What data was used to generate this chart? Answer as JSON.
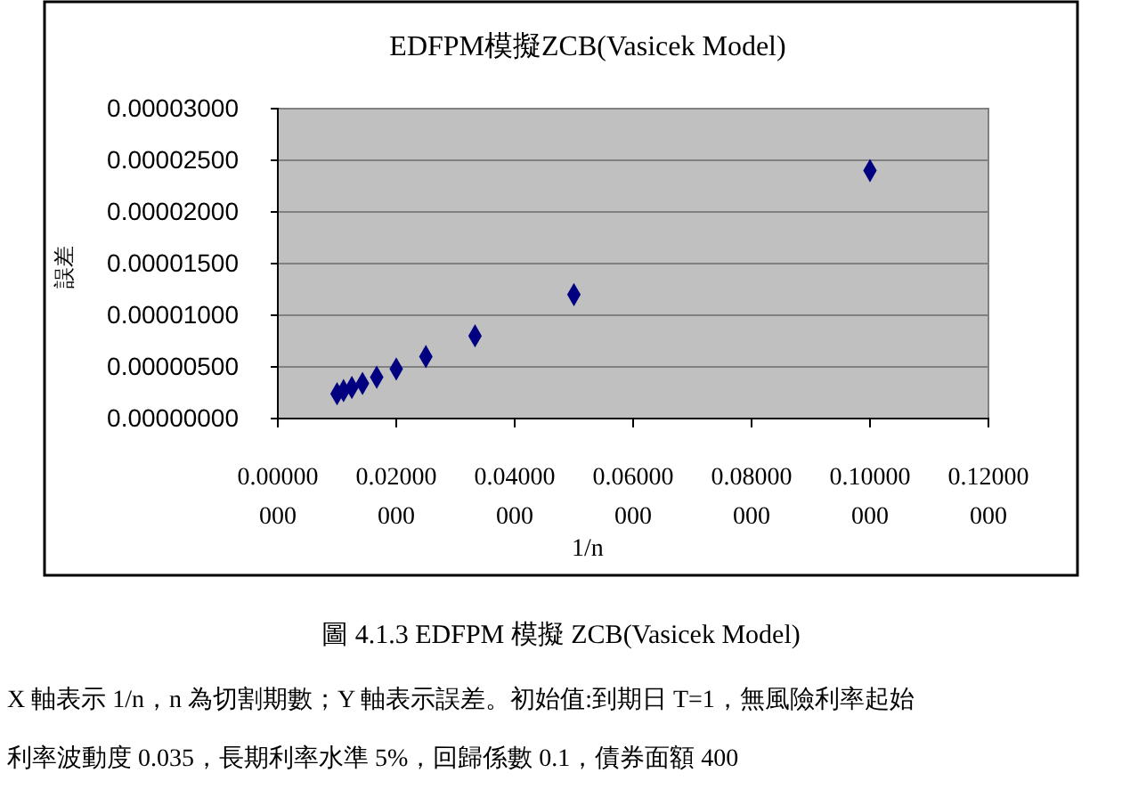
{
  "chart_data": {
    "type": "scatter",
    "title": "EDFPM模擬ZCB(Vasicek Model)",
    "xlabel": "1/n",
    "ylabel": "誤差",
    "x": [
      0.01,
      0.0111,
      0.0125,
      0.0143,
      0.0167,
      0.02,
      0.025,
      0.0333,
      0.05,
      0.1
    ],
    "series": [
      {
        "color": "#000080",
        "values": [
          2.4e-06,
          2.7e-06,
          3e-06,
          3.4e-06,
          4e-06,
          4.8e-06,
          6e-06,
          8e-06,
          1.2e-05,
          2.4e-05
        ]
      }
    ],
    "marker": "diamond",
    "grid": "y",
    "xlim": [
      0,
      0.12
    ],
    "xticks": [
      {
        "value": 0,
        "label": "0.00000000"
      },
      {
        "value": 0.02,
        "label": "0.02000000"
      },
      {
        "value": 0.04,
        "label": "0.04000000"
      },
      {
        "value": 0.06,
        "label": "0.06000000"
      },
      {
        "value": 0.08,
        "label": "0.08000000"
      },
      {
        "value": 0.1,
        "label": "0.10000000"
      },
      {
        "value": 0.12,
        "label": "0.12000000"
      }
    ],
    "ylim": [
      0,
      3e-05
    ],
    "yticks": [
      {
        "value": 0,
        "label": "0.00000000"
      },
      {
        "value": 5e-06,
        "label": "0.00000500"
      },
      {
        "value": 1e-05,
        "label": "0.00001000"
      },
      {
        "value": 1.5e-05,
        "label": "0.00001500"
      },
      {
        "value": 2e-05,
        "label": "0.00002000"
      },
      {
        "value": 2.5e-05,
        "label": "0.00002500"
      },
      {
        "value": 3e-05,
        "label": "0.00003000"
      }
    ],
    "annotations": [
      "圖 4.1.3 EDFPM 模擬 ZCB(Vasicek Model)",
      "X 軸表示 1/n，n 為切割期數；Y 軸表示誤差。初始值:到期日 T=1，無風險利率起始",
      "利率波動度 0.035，長期利率水準 5%，回歸係數 0.1，債券面額 400"
    ]
  }
}
